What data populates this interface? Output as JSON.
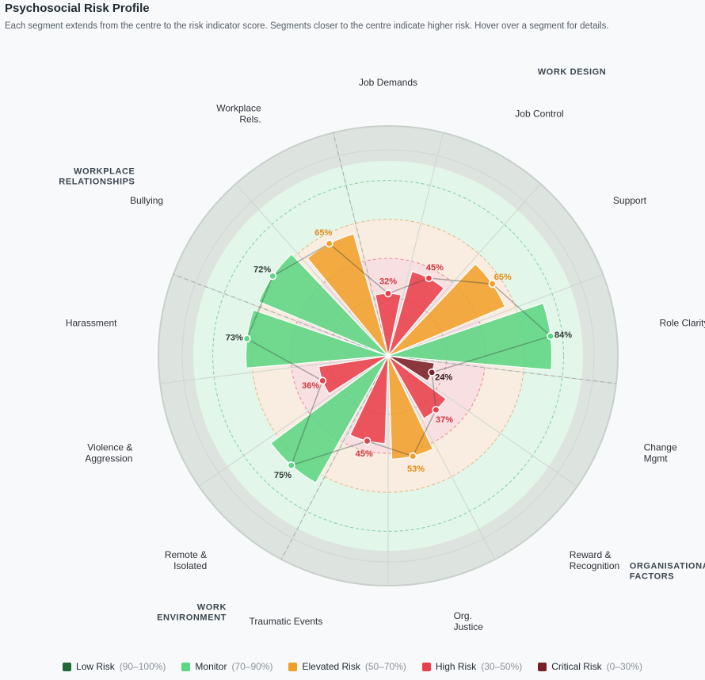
{
  "header": {
    "title": "Psychosocial Risk Profile",
    "subtitle": "Each segment extends from the centre to the risk indicator score. Segments closer to the centre indicate higher risk. Hover over a segment for details."
  },
  "colors": {
    "low": "#1e6b35",
    "monitor": "#5cd682",
    "elevated": "#f0a02a",
    "high": "#e8404a",
    "critical": "#7a1f25"
  },
  "chart_data": {
    "type": "polar-bar",
    "title": "Psychosocial Risk Profile",
    "rlim": [
      0,
      100
    ],
    "bands": [
      {
        "name": "Critical Risk",
        "range": [
          0,
          30
        ]
      },
      {
        "name": "High Risk",
        "range": [
          30,
          50
        ]
      },
      {
        "name": "Elevated Risk",
        "range": [
          50,
          70
        ]
      },
      {
        "name": "Monitor",
        "range": [
          70,
          90
        ]
      },
      {
        "name": "Low Risk",
        "range": [
          90,
          100
        ]
      }
    ],
    "categories": [
      {
        "label": "Job Demands",
        "value": 32,
        "level": "high"
      },
      {
        "label": "Job Control",
        "value": 45,
        "level": "high"
      },
      {
        "label": "Support",
        "value": 65,
        "level": "elevated"
      },
      {
        "label": "Role Clarity",
        "value": 84,
        "level": "monitor"
      },
      {
        "label": "Change Mgmt",
        "value": 24,
        "level": "critical"
      },
      {
        "label": "Reward & Recognition",
        "value": 37,
        "level": "high"
      },
      {
        "label": "Org. Justice",
        "value": 53,
        "level": "elevated"
      },
      {
        "label": "Traumatic Events",
        "value": 45,
        "level": "high"
      },
      {
        "label": "Remote & Isolated",
        "value": 75,
        "level": "monitor"
      },
      {
        "label": "Violence & Aggression",
        "value": 36,
        "level": "high"
      },
      {
        "label": "Harassment",
        "value": 73,
        "level": "monitor"
      },
      {
        "label": "Bullying",
        "value": 72,
        "level": "monitor"
      },
      {
        "label": "Workplace Rels.",
        "value": 65,
        "level": "elevated"
      }
    ],
    "groups": [
      {
        "label": "WORK DESIGN"
      },
      {
        "label": "ORGANISATIONAL FACTORS"
      },
      {
        "label": "WORK ENVIRONMENT"
      },
      {
        "label": "WORKPLACE RELATIONSHIPS"
      }
    ]
  },
  "legend": [
    {
      "label": "Low Risk",
      "range": "(90–100%)",
      "level": "low"
    },
    {
      "label": "Monitor",
      "range": "(70–90%)",
      "level": "monitor"
    },
    {
      "label": "Elevated Risk",
      "range": "(50–70%)",
      "level": "elevated"
    },
    {
      "label": "High Risk",
      "range": "(30–50%)",
      "level": "high"
    },
    {
      "label": "Critical Risk",
      "range": "(0–30%)",
      "level": "critical"
    }
  ]
}
